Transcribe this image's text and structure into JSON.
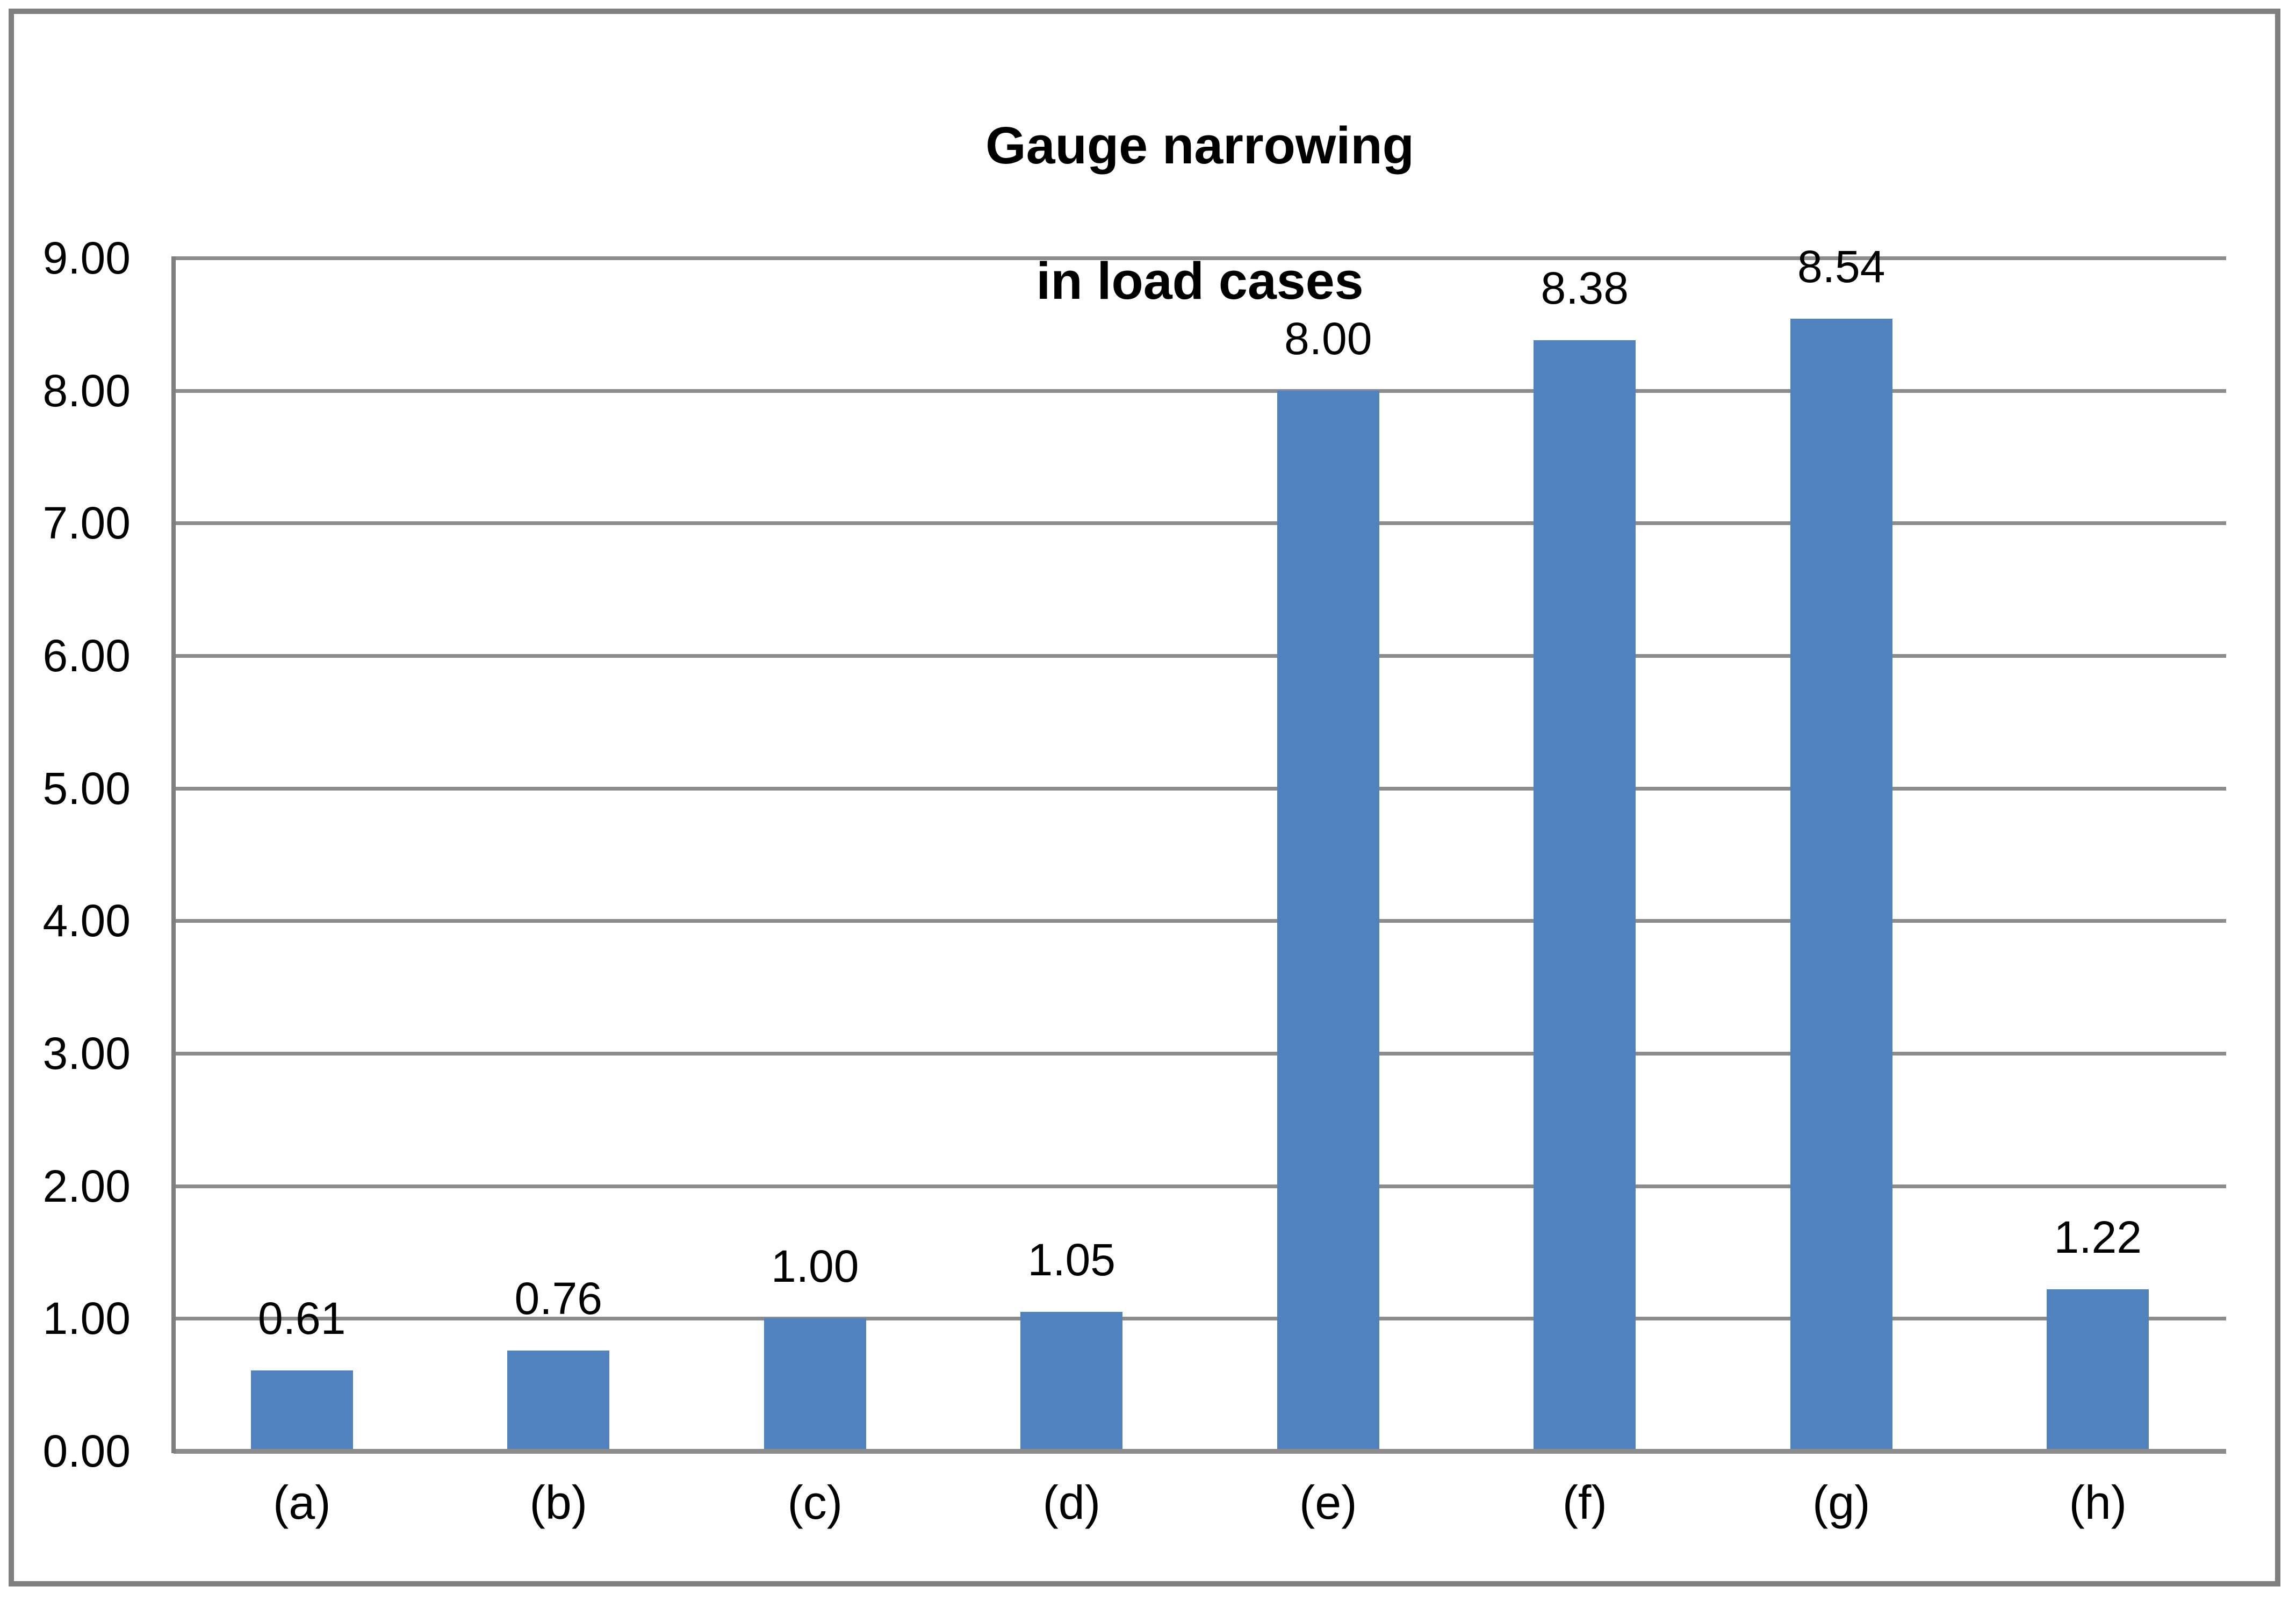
{
  "chart_data": {
    "type": "bar",
    "title": "Gauge narrowing in load cases",
    "title_lines": [
      "Gauge narrowing",
      "in load cases"
    ],
    "categories": [
      "(a)",
      "(b)",
      "(c)",
      "(d)",
      "(e)",
      "(f)",
      "(g)",
      "(h)"
    ],
    "values": [
      0.61,
      0.76,
      1.0,
      1.05,
      8.0,
      8.38,
      8.54,
      1.22
    ],
    "value_labels": [
      "0.61",
      "0.76",
      "1.00",
      "1.05",
      "8.00",
      "8.38",
      "8.54",
      "1.22"
    ],
    "xlabel": "",
    "ylabel": "",
    "ylim": [
      0,
      9
    ],
    "ytick_labels": [
      "0.00",
      "1.00",
      "2.00",
      "3.00",
      "4.00",
      "5.00",
      "6.00",
      "7.00",
      "8.00",
      "9.00"
    ],
    "grid": "horizontal",
    "legend_position": "none",
    "colors": {
      "bar_fill": "#4F82BE",
      "gridline": "#8C8C8C",
      "axis_line": "#7F7F7F",
      "frame_border": "#808080",
      "text": "#000000",
      "background": "#FFFFFF"
    }
  }
}
